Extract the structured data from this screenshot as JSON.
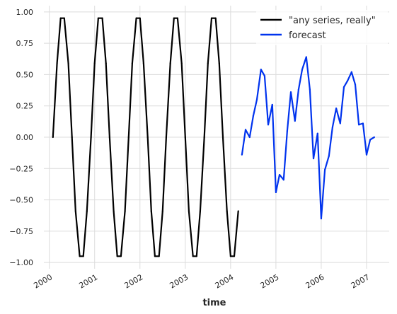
{
  "chart_data": {
    "type": "line",
    "xlabel": "time",
    "ylabel": "",
    "title": "",
    "ylim": [
      -1.05,
      1.05
    ],
    "xlim": [
      1999.88,
      2007.5
    ],
    "grid": true,
    "legend_position": "top-right",
    "x_tick_labels": [
      "2000",
      "2001",
      "2002",
      "2003",
      "2004",
      "2005",
      "2006",
      "2007"
    ],
    "x_ticks": [
      2000,
      2001,
      2002,
      2003,
      2004,
      2005,
      2006,
      2007
    ],
    "y_ticks": [
      1.0,
      0.75,
      0.5,
      0.25,
      0.0,
      -0.25,
      -0.5,
      -0.75,
      -1.0
    ],
    "y_tick_labels": [
      "1.00",
      "0.75",
      "0.50",
      "0.25",
      "0.00",
      "−0.25",
      "−0.50",
      "−0.75",
      "−1.00"
    ],
    "series": [
      {
        "name": "\"any series, really\"",
        "color": "#000000",
        "x": [
          2000.08,
          2000.17,
          2000.25,
          2000.33,
          2000.42,
          2000.5,
          2000.58,
          2000.67,
          2000.75,
          2000.83,
          2000.92,
          2001.0,
          2001.08,
          2001.17,
          2001.25,
          2001.33,
          2001.42,
          2001.5,
          2001.58,
          2001.67,
          2001.75,
          2001.83,
          2001.92,
          2002.0,
          2002.08,
          2002.17,
          2002.25,
          2002.33,
          2002.42,
          2002.5,
          2002.58,
          2002.67,
          2002.75,
          2002.83,
          2002.92,
          2003.0,
          2003.08,
          2003.17,
          2003.25,
          2003.33,
          2003.42,
          2003.5,
          2003.58,
          2003.67,
          2003.75,
          2003.83,
          2003.92,
          2004.0,
          2004.08,
          2004.17
        ],
        "values": [
          0.0,
          0.59,
          0.95,
          0.95,
          0.59,
          0.0,
          -0.59,
          -0.95,
          -0.95,
          -0.59,
          0.0,
          0.59,
          0.95,
          0.95,
          0.59,
          0.0,
          -0.59,
          -0.95,
          -0.95,
          -0.59,
          0.0,
          0.59,
          0.95,
          0.95,
          0.59,
          0.0,
          -0.59,
          -0.95,
          -0.95,
          -0.59,
          0.0,
          0.59,
          0.95,
          0.95,
          0.59,
          0.0,
          -0.59,
          -0.95,
          -0.95,
          -0.59,
          0.0,
          0.59,
          0.95,
          0.95,
          0.59,
          0.0,
          -0.59,
          -0.95,
          -0.95,
          -0.59
        ]
      },
      {
        "name": "forecast",
        "color": "#0033ee",
        "x": [
          2004.25,
          2004.33,
          2004.42,
          2004.5,
          2004.58,
          2004.67,
          2004.75,
          2004.83,
          2004.92,
          2005.0,
          2005.08,
          2005.17,
          2005.25,
          2005.33,
          2005.42,
          2005.5,
          2005.58,
          2005.67,
          2005.75,
          2005.83,
          2005.92,
          2006.0,
          2006.08,
          2006.17,
          2006.25,
          2006.33,
          2006.42,
          2006.5,
          2006.58,
          2006.67,
          2006.75,
          2006.83,
          2006.92,
          2007.0,
          2007.08,
          2007.17
        ],
        "values": [
          -0.14,
          0.06,
          0.0,
          0.17,
          0.3,
          0.54,
          0.49,
          0.1,
          0.26,
          -0.44,
          -0.3,
          -0.34,
          0.05,
          0.36,
          0.13,
          0.38,
          0.54,
          0.64,
          0.38,
          -0.17,
          0.03,
          -0.65,
          -0.26,
          -0.15,
          0.08,
          0.23,
          0.11,
          0.4,
          0.45,
          0.52,
          0.42,
          0.1,
          0.11,
          -0.14,
          -0.02,
          0.0
        ]
      }
    ]
  }
}
